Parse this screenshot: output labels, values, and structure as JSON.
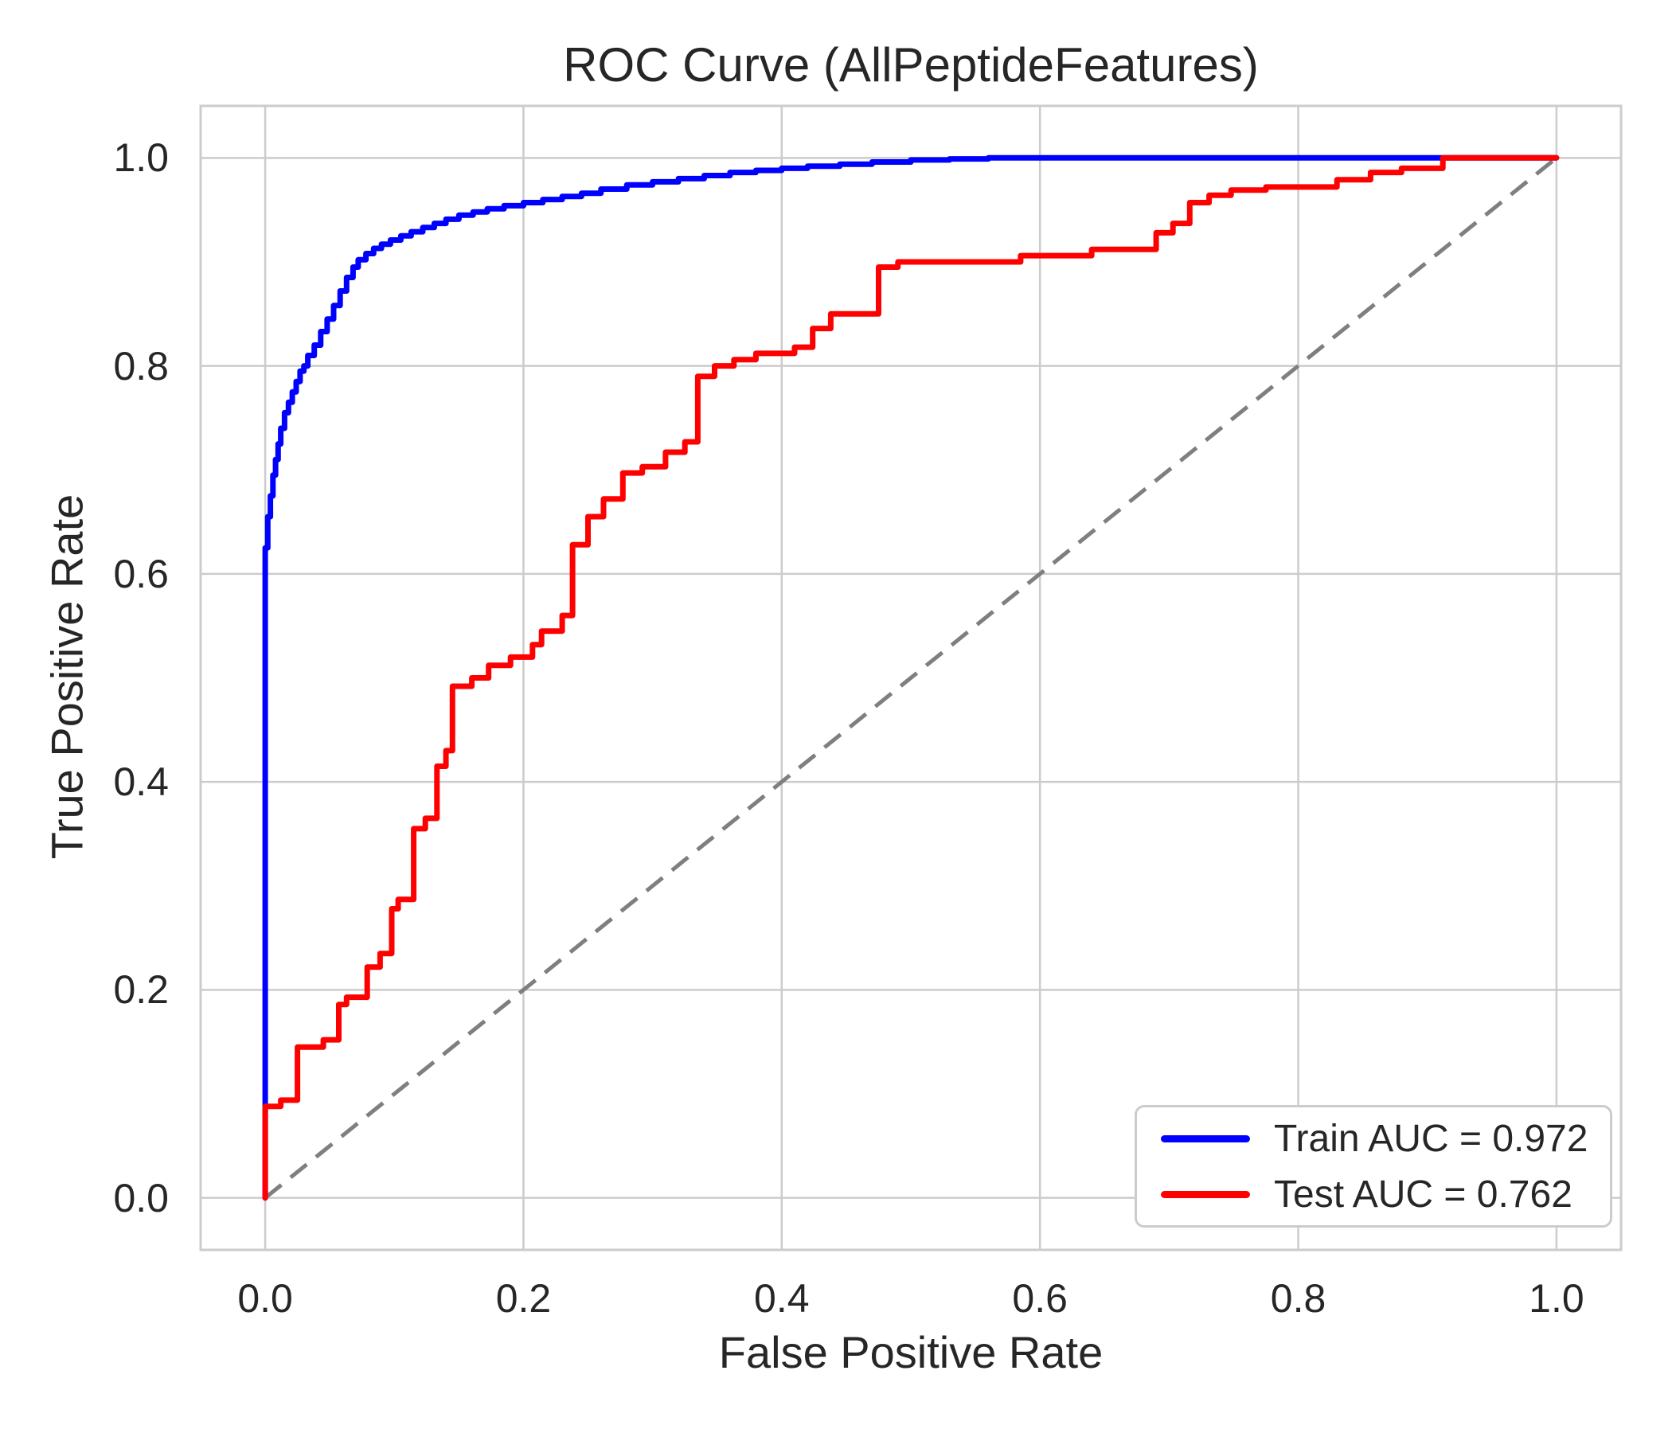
{
  "figure": {
    "title": "ROC Curve (AllPeptideFeatures)",
    "background_color": "#ffffff",
    "text_color": "#262626"
  },
  "axes": {
    "xlabel": "False Positive Rate",
    "ylabel": "True Positive Rate",
    "x_ticks": [
      {
        "value": 0.0,
        "label": "0.0"
      },
      {
        "value": 0.2,
        "label": "0.2"
      },
      {
        "value": 0.4,
        "label": "0.4"
      },
      {
        "value": 0.6,
        "label": "0.6"
      },
      {
        "value": 0.8,
        "label": "0.8"
      },
      {
        "value": 1.0,
        "label": "1.0"
      }
    ],
    "y_ticks": [
      {
        "value": 0.0,
        "label": "0.0"
      },
      {
        "value": 0.2,
        "label": "0.2"
      },
      {
        "value": 0.4,
        "label": "0.4"
      },
      {
        "value": 0.6,
        "label": "0.6"
      },
      {
        "value": 0.8,
        "label": "0.8"
      },
      {
        "value": 1.0,
        "label": "1.0"
      }
    ],
    "grid_color": "#cccccc",
    "spine_color": "#cccccc"
  },
  "legend": {
    "items": [
      {
        "label": "Train AUC = 0.972",
        "color": "#0000ff"
      },
      {
        "label": "Test AUC = 0.762",
        "color": "#ff0000"
      }
    ]
  },
  "chart_data": {
    "type": "line",
    "title": "ROC Curve (AllPeptideFeatures)",
    "xlabel": "False Positive Rate",
    "ylabel": "True Positive Rate",
    "xlim": [
      -0.05,
      1.05
    ],
    "ylim": [
      -0.05,
      1.05
    ],
    "grid": true,
    "legend_position": "lower right",
    "series": [
      {
        "name": "Train AUC = 0.972",
        "auc": 0.972,
        "color": "#0000ff",
        "line_width": 7,
        "interpolation": "step-pre",
        "points": [
          [
            0,
            0
          ],
          [
            0,
            0.59
          ],
          [
            0.002,
            0.625
          ],
          [
            0.004,
            0.655
          ],
          [
            0.006,
            0.675
          ],
          [
            0.008,
            0.695
          ],
          [
            0.01,
            0.71
          ],
          [
            0.012,
            0.725
          ],
          [
            0.015,
            0.74
          ],
          [
            0.018,
            0.755
          ],
          [
            0.021,
            0.765
          ],
          [
            0.024,
            0.775
          ],
          [
            0.027,
            0.785
          ],
          [
            0.03,
            0.795
          ],
          [
            0.033,
            0.8
          ],
          [
            0.038,
            0.81
          ],
          [
            0.043,
            0.82
          ],
          [
            0.048,
            0.833
          ],
          [
            0.053,
            0.845
          ],
          [
            0.058,
            0.858
          ],
          [
            0.063,
            0.872
          ],
          [
            0.068,
            0.885
          ],
          [
            0.072,
            0.895
          ],
          [
            0.078,
            0.902
          ],
          [
            0.084,
            0.908
          ],
          [
            0.09,
            0.913
          ],
          [
            0.097,
            0.917
          ],
          [
            0.105,
            0.921
          ],
          [
            0.113,
            0.925
          ],
          [
            0.122,
            0.929
          ],
          [
            0.131,
            0.933
          ],
          [
            0.14,
            0.937
          ],
          [
            0.15,
            0.941
          ],
          [
            0.161,
            0.945
          ],
          [
            0.172,
            0.948
          ],
          [
            0.185,
            0.951
          ],
          [
            0.2,
            0.954
          ],
          [
            0.215,
            0.957
          ],
          [
            0.23,
            0.96
          ],
          [
            0.245,
            0.963
          ],
          [
            0.26,
            0.966
          ],
          [
            0.28,
            0.97
          ],
          [
            0.3,
            0.974
          ],
          [
            0.32,
            0.977
          ],
          [
            0.34,
            0.98
          ],
          [
            0.36,
            0.983
          ],
          [
            0.38,
            0.986
          ],
          [
            0.4,
            0.988
          ],
          [
            0.42,
            0.99
          ],
          [
            0.445,
            0.992
          ],
          [
            0.47,
            0.994
          ],
          [
            0.5,
            0.996
          ],
          [
            0.53,
            0.998
          ],
          [
            0.56,
            0.999
          ],
          [
            0.59,
            1.0
          ],
          [
            1.0,
            1.0
          ]
        ]
      },
      {
        "name": "Test AUC = 0.762",
        "auc": 0.762,
        "color": "#ff0000",
        "line_width": 7,
        "interpolation": "linear",
        "points": [
          [
            0,
            0
          ],
          [
            0,
            0.088
          ],
          [
            0.012,
            0.088
          ],
          [
            0.012,
            0.094
          ],
          [
            0.025,
            0.094
          ],
          [
            0.025,
            0.145
          ],
          [
            0.045,
            0.145
          ],
          [
            0.045,
            0.152
          ],
          [
            0.057,
            0.152
          ],
          [
            0.057,
            0.186
          ],
          [
            0.063,
            0.186
          ],
          [
            0.063,
            0.193
          ],
          [
            0.079,
            0.193
          ],
          [
            0.079,
            0.222
          ],
          [
            0.089,
            0.222
          ],
          [
            0.089,
            0.235
          ],
          [
            0.098,
            0.235
          ],
          [
            0.098,
            0.278
          ],
          [
            0.103,
            0.278
          ],
          [
            0.103,
            0.287
          ],
          [
            0.115,
            0.287
          ],
          [
            0.115,
            0.355
          ],
          [
            0.124,
            0.355
          ],
          [
            0.124,
            0.365
          ],
          [
            0.133,
            0.365
          ],
          [
            0.133,
            0.415
          ],
          [
            0.14,
            0.415
          ],
          [
            0.14,
            0.43
          ],
          [
            0.145,
            0.43
          ],
          [
            0.145,
            0.492
          ],
          [
            0.16,
            0.492
          ],
          [
            0.16,
            0.5
          ],
          [
            0.173,
            0.5
          ],
          [
            0.173,
            0.512
          ],
          [
            0.19,
            0.512
          ],
          [
            0.19,
            0.52
          ],
          [
            0.207,
            0.52
          ],
          [
            0.207,
            0.532
          ],
          [
            0.214,
            0.532
          ],
          [
            0.214,
            0.545
          ],
          [
            0.23,
            0.545
          ],
          [
            0.23,
            0.56
          ],
          [
            0.238,
            0.56
          ],
          [
            0.238,
            0.628
          ],
          [
            0.25,
            0.628
          ],
          [
            0.25,
            0.655
          ],
          [
            0.262,
            0.655
          ],
          [
            0.262,
            0.672
          ],
          [
            0.277,
            0.672
          ],
          [
            0.277,
            0.697
          ],
          [
            0.292,
            0.697
          ],
          [
            0.292,
            0.703
          ],
          [
            0.31,
            0.703
          ],
          [
            0.31,
            0.717
          ],
          [
            0.325,
            0.717
          ],
          [
            0.325,
            0.727
          ],
          [
            0.335,
            0.727
          ],
          [
            0.335,
            0.79
          ],
          [
            0.348,
            0.79
          ],
          [
            0.348,
            0.8
          ],
          [
            0.363,
            0.8
          ],
          [
            0.363,
            0.806
          ],
          [
            0.38,
            0.806
          ],
          [
            0.38,
            0.812
          ],
          [
            0.41,
            0.812
          ],
          [
            0.41,
            0.818
          ],
          [
            0.424,
            0.818
          ],
          [
            0.424,
            0.836
          ],
          [
            0.438,
            0.836
          ],
          [
            0.438,
            0.85
          ],
          [
            0.475,
            0.85
          ],
          [
            0.475,
            0.895
          ],
          [
            0.49,
            0.895
          ],
          [
            0.49,
            0.9
          ],
          [
            0.585,
            0.9
          ],
          [
            0.585,
            0.906
          ],
          [
            0.64,
            0.906
          ],
          [
            0.64,
            0.912
          ],
          [
            0.69,
            0.912
          ],
          [
            0.69,
            0.928
          ],
          [
            0.703,
            0.928
          ],
          [
            0.703,
            0.937
          ],
          [
            0.716,
            0.937
          ],
          [
            0.716,
            0.957
          ],
          [
            0.731,
            0.957
          ],
          [
            0.731,
            0.964
          ],
          [
            0.748,
            0.964
          ],
          [
            0.748,
            0.969
          ],
          [
            0.775,
            0.969
          ],
          [
            0.775,
            0.972
          ],
          [
            0.83,
            0.972
          ],
          [
            0.83,
            0.979
          ],
          [
            0.856,
            0.979
          ],
          [
            0.856,
            0.986
          ],
          [
            0.88,
            0.986
          ],
          [
            0.88,
            0.99
          ],
          [
            0.912,
            0.99
          ],
          [
            0.912,
            1.0
          ],
          [
            1.0,
            1.0
          ]
        ]
      }
    ],
    "reference_line": {
      "name": "chance-diagonal",
      "from": [
        0,
        0
      ],
      "to": [
        1,
        1
      ],
      "color": "#7f7f7f",
      "style": "dashed",
      "line_width": 5
    }
  }
}
